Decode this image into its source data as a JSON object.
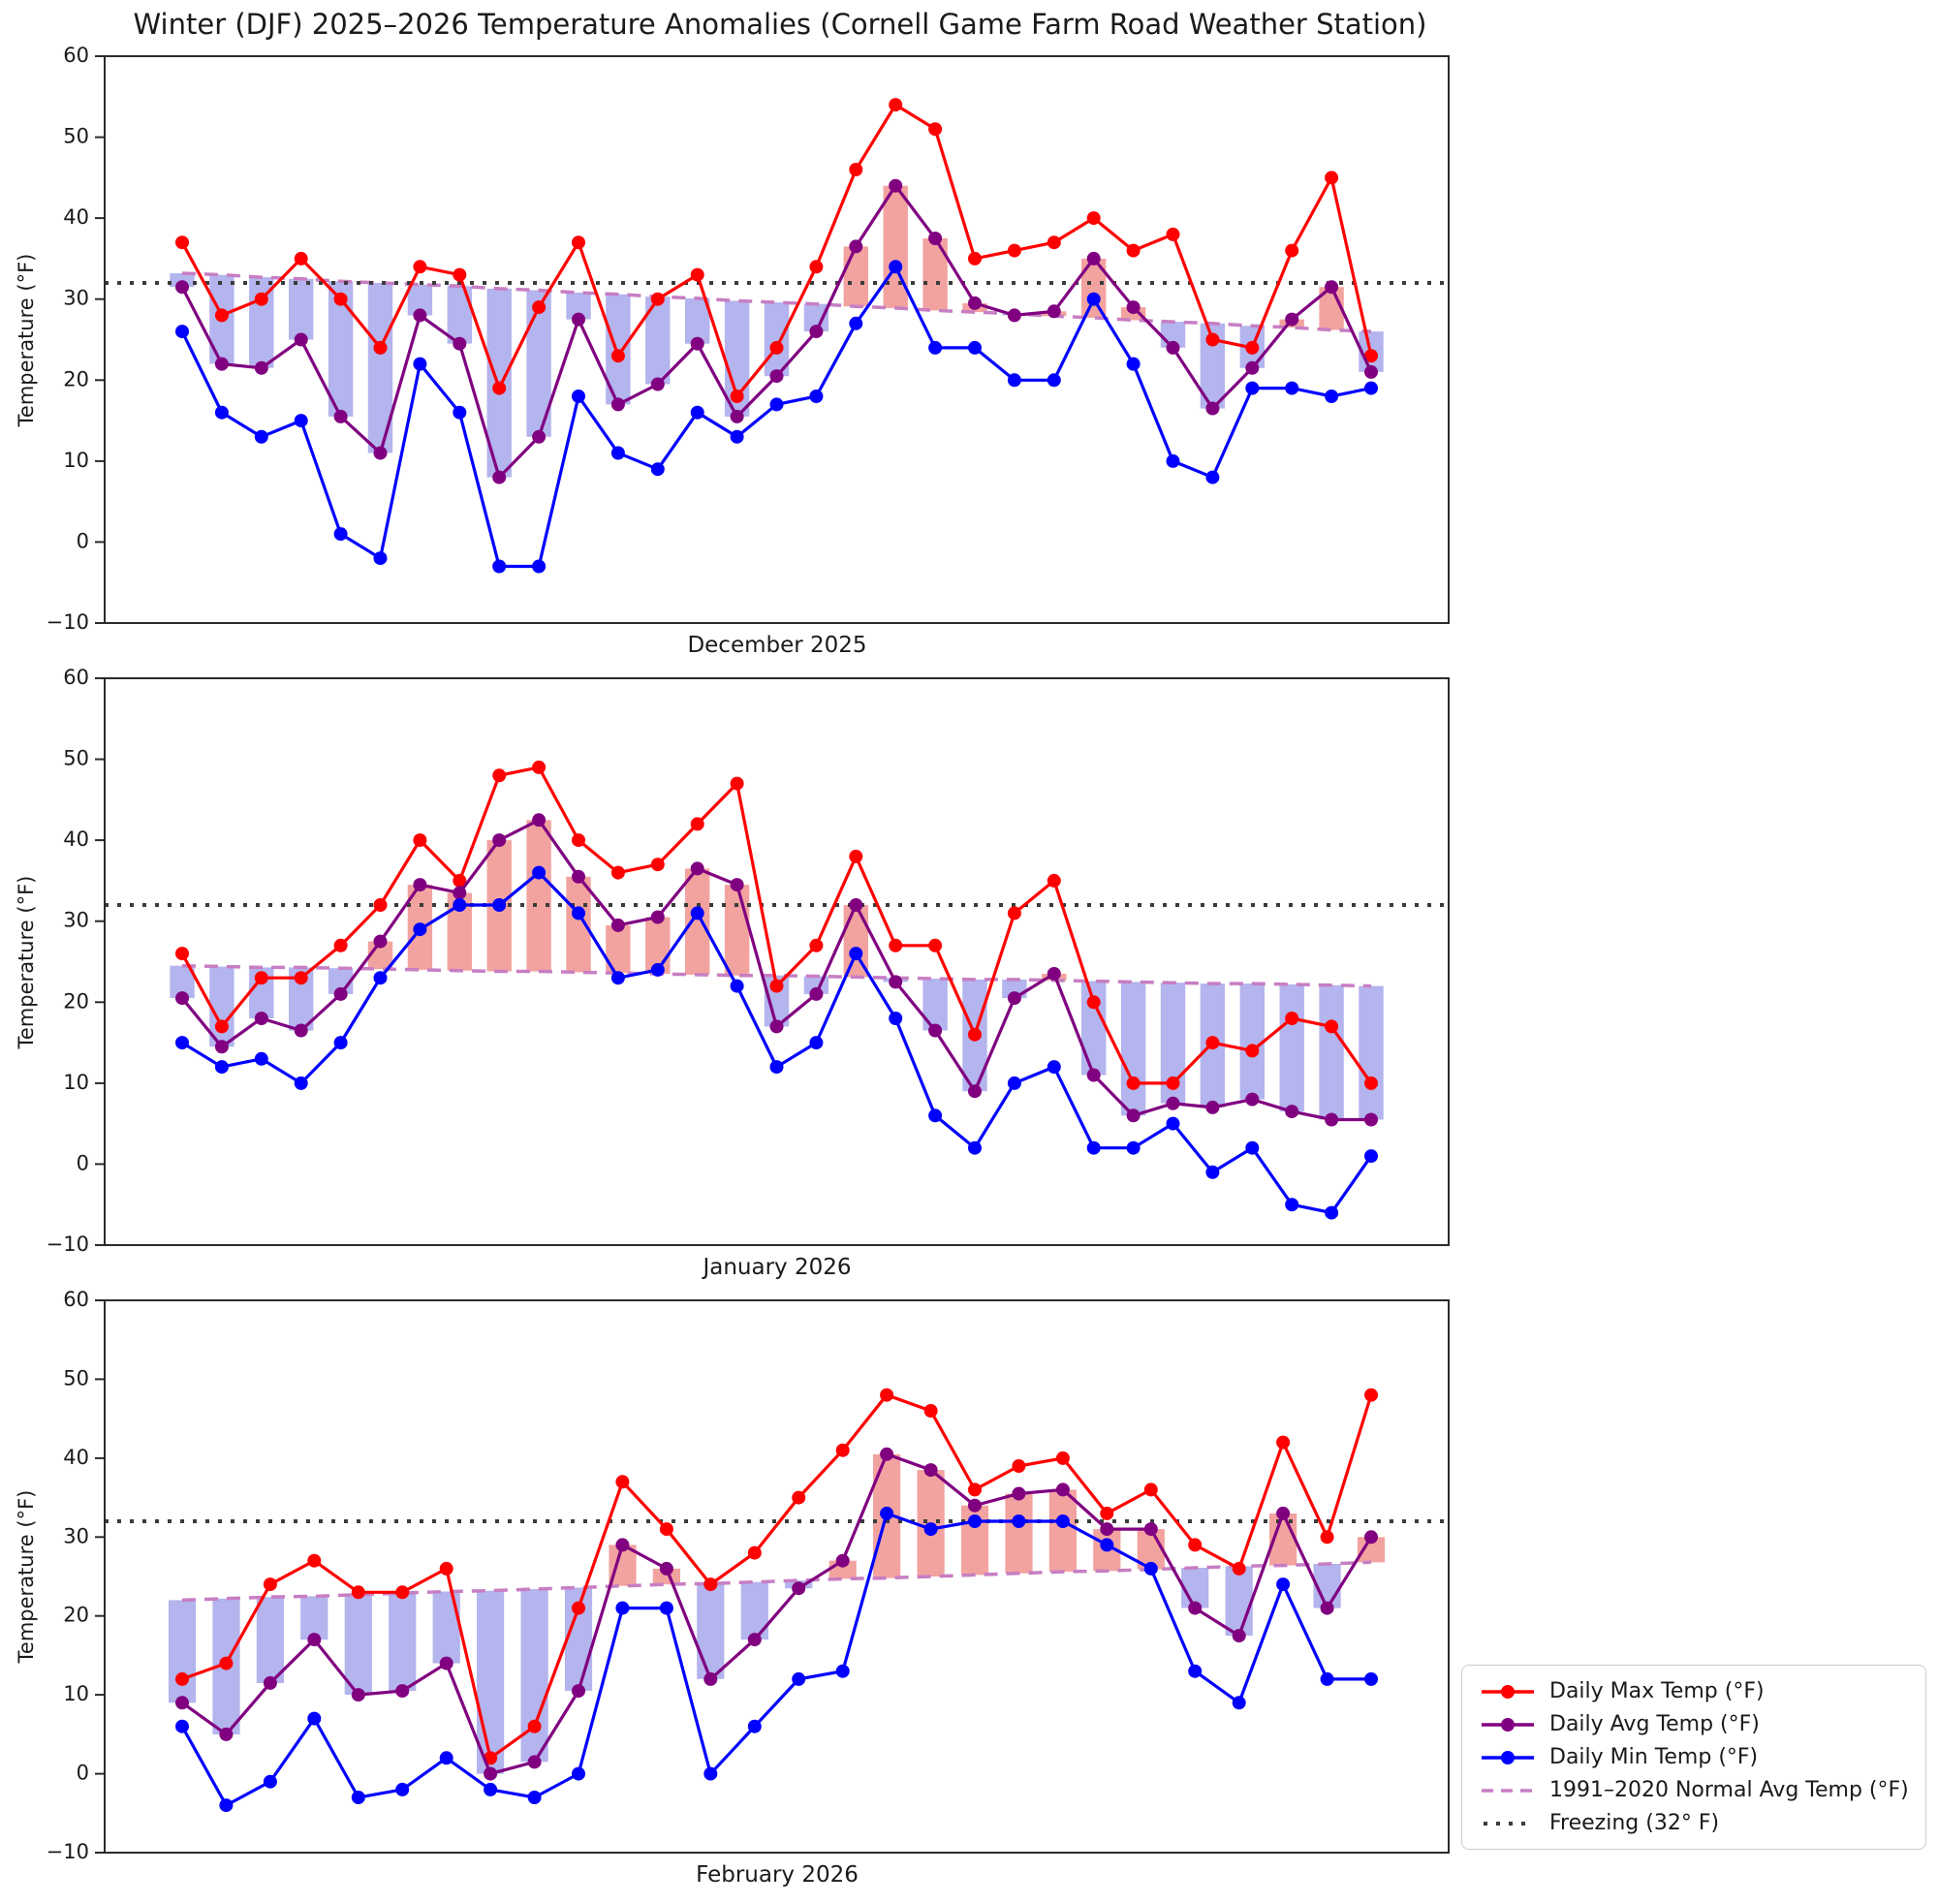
{
  "title": "Winter (DJF) 2025–2026 Temperature Anomalies (Cornell Game Farm Road Weather Station)",
  "ylabel": "Temperature (°F)",
  "axis": {
    "ylim": [
      -10,
      60
    ],
    "yticks": [
      60,
      50,
      40,
      30,
      20,
      10,
      0,
      -10
    ],
    "freezing_value": 32
  },
  "legend": [
    {
      "label": "Daily Max Temp (°F)",
      "style": "solid-dot",
      "color": "#ff0000"
    },
    {
      "label": "Daily Avg Temp (°F)",
      "style": "solid-dot",
      "color": "#800080"
    },
    {
      "label": "Daily Min Temp (°F)",
      "style": "solid-dot",
      "color": "#0000ff"
    },
    {
      "label": "1991–2020 Normal Avg Temp (°F)",
      "style": "dashed",
      "color": "#c77ec3"
    },
    {
      "label": "Freezing (32° F)",
      "style": "dotted",
      "color": "#3b3b3b"
    }
  ],
  "colors": {
    "max": "#ff0000",
    "avg": "#800080",
    "min": "#0000ff",
    "normal": "#c77ec3",
    "freezing": "#3b3b3b",
    "bar_above_normal": "#f2a3a0",
    "bar_below_normal": "#b4b4ee",
    "axis": "#2b2b2b"
  },
  "chart_data": [
    {
      "type": "line",
      "month_label": "December 2025",
      "days": 31,
      "series": [
        {
          "name": "Daily Max Temp (°F)",
          "values": [
            37,
            28,
            30,
            35,
            30,
            24,
            34,
            33,
            19,
            29,
            37,
            23,
            30,
            33,
            18,
            24,
            34,
            46,
            54,
            51,
            35,
            36,
            37,
            40,
            36,
            38,
            25,
            24,
            36,
            45,
            23
          ]
        },
        {
          "name": "Daily Avg Temp (°F)",
          "values": [
            31.5,
            22,
            21.5,
            25,
            15.5,
            11,
            28,
            24.5,
            8,
            13,
            27.5,
            17,
            19.5,
            24.5,
            15.5,
            20.5,
            26,
            36.5,
            44,
            37.5,
            29.5,
            28,
            28.5,
            35,
            29,
            24,
            16.5,
            21.5,
            27.5,
            31.5,
            21
          ]
        },
        {
          "name": "Daily Min Temp (°F)",
          "values": [
            26,
            16,
            13,
            15,
            1,
            -2,
            22,
            16,
            -3,
            -3,
            18,
            11,
            9,
            16,
            13,
            17,
            18,
            27,
            34,
            24,
            24,
            20,
            20,
            30,
            22,
            10,
            8,
            19,
            19,
            18,
            19
          ]
        },
        {
          "name": "1991–2020 Normal Avg Temp (°F)",
          "values": [
            33.2,
            33.0,
            32.7,
            32.5,
            32.2,
            32.0,
            31.8,
            31.6,
            31.3,
            31.1,
            30.8,
            30.6,
            30.3,
            30.1,
            29.8,
            29.6,
            29.4,
            29.1,
            28.9,
            28.6,
            28.4,
            28.2,
            27.9,
            27.7,
            27.4,
            27.2,
            27.0,
            26.7,
            26.5,
            26.2,
            26.0
          ]
        }
      ]
    },
    {
      "type": "line",
      "month_label": "January 2026",
      "days": 31,
      "series": [
        {
          "name": "Daily Max Temp (°F)",
          "values": [
            26,
            17,
            23,
            23,
            27,
            32,
            40,
            35,
            48,
            49,
            40,
            36,
            37,
            42,
            47,
            22,
            27,
            38,
            27,
            27,
            16,
            31,
            35,
            20,
            10,
            10,
            15,
            14,
            18,
            17,
            10
          ]
        },
        {
          "name": "Daily Avg Temp (°F)",
          "values": [
            20.5,
            14.5,
            18,
            16.5,
            21,
            27.5,
            34.5,
            33.5,
            40,
            42.5,
            35.5,
            29.5,
            30.5,
            36.5,
            34.5,
            17,
            21,
            32,
            22.5,
            16.5,
            9,
            20.5,
            23.5,
            11,
            6,
            7.5,
            7,
            8,
            6.5,
            5.5,
            5.5
          ]
        },
        {
          "name": "Daily Min Temp (°F)",
          "values": [
            15,
            12,
            13,
            10,
            15,
            23,
            29,
            32,
            32,
            36,
            31,
            23,
            24,
            31,
            22,
            12,
            15,
            26,
            18,
            6,
            2,
            10,
            12,
            2,
            2,
            5,
            -1,
            2,
            -5,
            -6,
            1
          ]
        },
        {
          "name": "1991–2020 Normal Avg Temp (°F)",
          "values": [
            24.5,
            24.4,
            24.3,
            24.3,
            24.2,
            24.1,
            24.0,
            23.9,
            23.8,
            23.8,
            23.7,
            23.6,
            23.5,
            23.4,
            23.3,
            23.3,
            23.2,
            23.1,
            23.0,
            22.9,
            22.8,
            22.8,
            22.7,
            22.6,
            22.5,
            22.4,
            22.3,
            22.3,
            22.2,
            22.1,
            22.0
          ]
        }
      ]
    },
    {
      "type": "line",
      "month_label": "February 2026",
      "days": 28,
      "series": [
        {
          "name": "Daily Max Temp (°F)",
          "values": [
            12,
            14,
            24,
            27,
            23,
            23,
            26,
            2,
            6,
            21,
            37,
            31,
            24,
            28,
            35,
            41,
            48,
            46,
            36,
            39,
            40,
            33,
            36,
            29,
            26,
            42,
            30,
            48
          ]
        },
        {
          "name": "Daily Avg Temp (°F)",
          "values": [
            9,
            5,
            11.5,
            17,
            10,
            10.5,
            14,
            0,
            1.5,
            10.5,
            29,
            26,
            12,
            17,
            23.5,
            27,
            40.5,
            38.5,
            34,
            35.5,
            36,
            31,
            31,
            21,
            17.5,
            33,
            21,
            30
          ]
        },
        {
          "name": "Daily Min Temp (°F)",
          "values": [
            6,
            -4,
            -1,
            7,
            -3,
            -2,
            2,
            -2,
            -3,
            0,
            21,
            21,
            0,
            6,
            12,
            13,
            33,
            31,
            32,
            32,
            32,
            29,
            26,
            13,
            9,
            24,
            12,
            12
          ]
        },
        {
          "name": "1991–2020 Normal Avg Temp (°F)",
          "values": [
            22.0,
            22.2,
            22.4,
            22.5,
            22.7,
            22.9,
            23.1,
            23.2,
            23.4,
            23.6,
            23.8,
            24.0,
            24.1,
            24.3,
            24.5,
            24.7,
            24.8,
            25.0,
            25.2,
            25.4,
            25.6,
            25.7,
            25.9,
            26.1,
            26.3,
            26.4,
            26.6,
            26.8
          ]
        }
      ]
    }
  ]
}
